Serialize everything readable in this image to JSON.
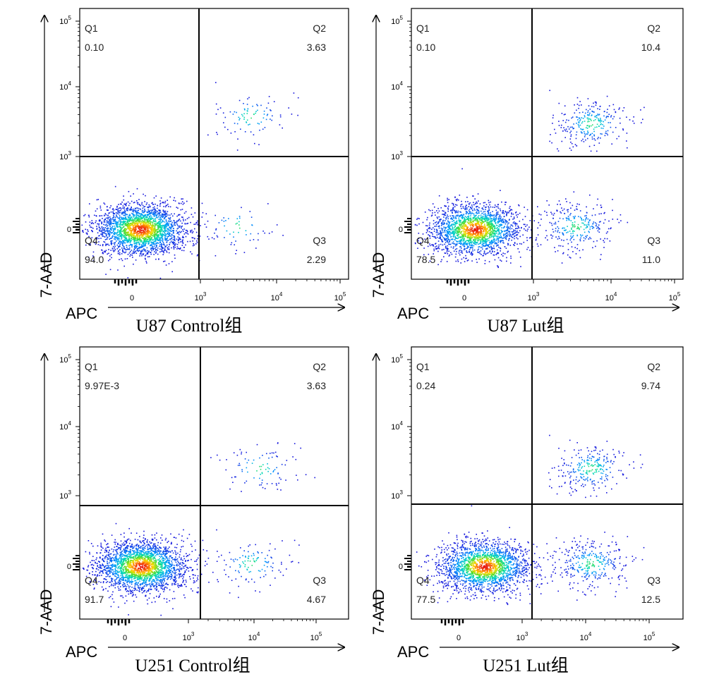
{
  "chart_data": [
    {
      "type": "scatter",
      "title": "U87 Control组",
      "xlabel": "APC",
      "ylabel": "7-AAD",
      "x_ticks": [
        "0",
        "10^3",
        "10^4",
        "10^5"
      ],
      "y_ticks": [
        "0",
        "10^3",
        "10^4",
        "10^5"
      ],
      "quadrant_gate": {
        "x": 1000,
        "y": 1000
      },
      "quadrants": [
        {
          "name": "Q1",
          "value": "0.10"
        },
        {
          "name": "Q2",
          "value": "3.63"
        },
        {
          "name": "Q3",
          "value": "2.29"
        },
        {
          "name": "Q4",
          "value": "94.0"
        }
      ],
      "populations": [
        {
          "x": 120,
          "y": 0,
          "weight": 0.94
        },
        {
          "x": 4500,
          "y": 3800,
          "weight": 0.036
        },
        {
          "x": 3000,
          "y": 40,
          "weight": 0.023
        }
      ]
    },
    {
      "type": "scatter",
      "title": "U87 Lut组",
      "xlabel": "APC",
      "ylabel": "7-AAD",
      "x_ticks": [
        "0",
        "10^3",
        "10^4",
        "10^5"
      ],
      "y_ticks": [
        "0",
        "10^3",
        "10^4",
        "10^5"
      ],
      "quadrant_gate": {
        "x": 1000,
        "y": 1000
      },
      "quadrants": [
        {
          "name": "Q1",
          "value": "0.10"
        },
        {
          "name": "Q2",
          "value": "10.4"
        },
        {
          "name": "Q3",
          "value": "11.0"
        },
        {
          "name": "Q4",
          "value": "78.5"
        }
      ],
      "populations": [
        {
          "x": 150,
          "y": 0,
          "weight": 0.785
        },
        {
          "x": 5500,
          "y": 3000,
          "weight": 0.104
        },
        {
          "x": 3500,
          "y": 40,
          "weight": 0.11
        }
      ]
    },
    {
      "type": "scatter",
      "title": "U251 Control组",
      "xlabel": "APC",
      "ylabel": "7-AAD",
      "x_ticks": [
        "0",
        "10^3",
        "10^4",
        "10^5"
      ],
      "y_ticks": [
        "0",
        "10^3",
        "10^4",
        "10^5"
      ],
      "quadrant_gate": {
        "x": 1700,
        "y": 700
      },
      "quadrants": [
        {
          "name": "Q1",
          "value": "9.97E-3"
        },
        {
          "name": "Q2",
          "value": "3.63"
        },
        {
          "name": "Q3",
          "value": "4.67"
        },
        {
          "name": "Q4",
          "value": "91.7"
        }
      ],
      "populations": [
        {
          "x": 250,
          "y": 0,
          "weight": 0.917
        },
        {
          "x": 12000,
          "y": 2500,
          "weight": 0.036
        },
        {
          "x": 9000,
          "y": 40,
          "weight": 0.047
        }
      ]
    },
    {
      "type": "scatter",
      "title": "U251 Lut组",
      "xlabel": "APC",
      "ylabel": "7-AAD",
      "x_ticks": [
        "0",
        "10^3",
        "10^4",
        "10^5"
      ],
      "y_ticks": [
        "0",
        "10^3",
        "10^4",
        "10^5"
      ],
      "quadrant_gate": {
        "x": 1700,
        "y": 700
      },
      "quadrants": [
        {
          "name": "Q1",
          "value": "0.24"
        },
        {
          "name": "Q2",
          "value": "9.74"
        },
        {
          "name": "Q3",
          "value": "12.5"
        },
        {
          "name": "Q4",
          "value": "77.5"
        }
      ],
      "populations": [
        {
          "x": 400,
          "y": 0,
          "weight": 0.775
        },
        {
          "x": 12000,
          "y": 2500,
          "weight": 0.097
        },
        {
          "x": 12000,
          "y": 40,
          "weight": 0.125
        }
      ]
    }
  ]
}
